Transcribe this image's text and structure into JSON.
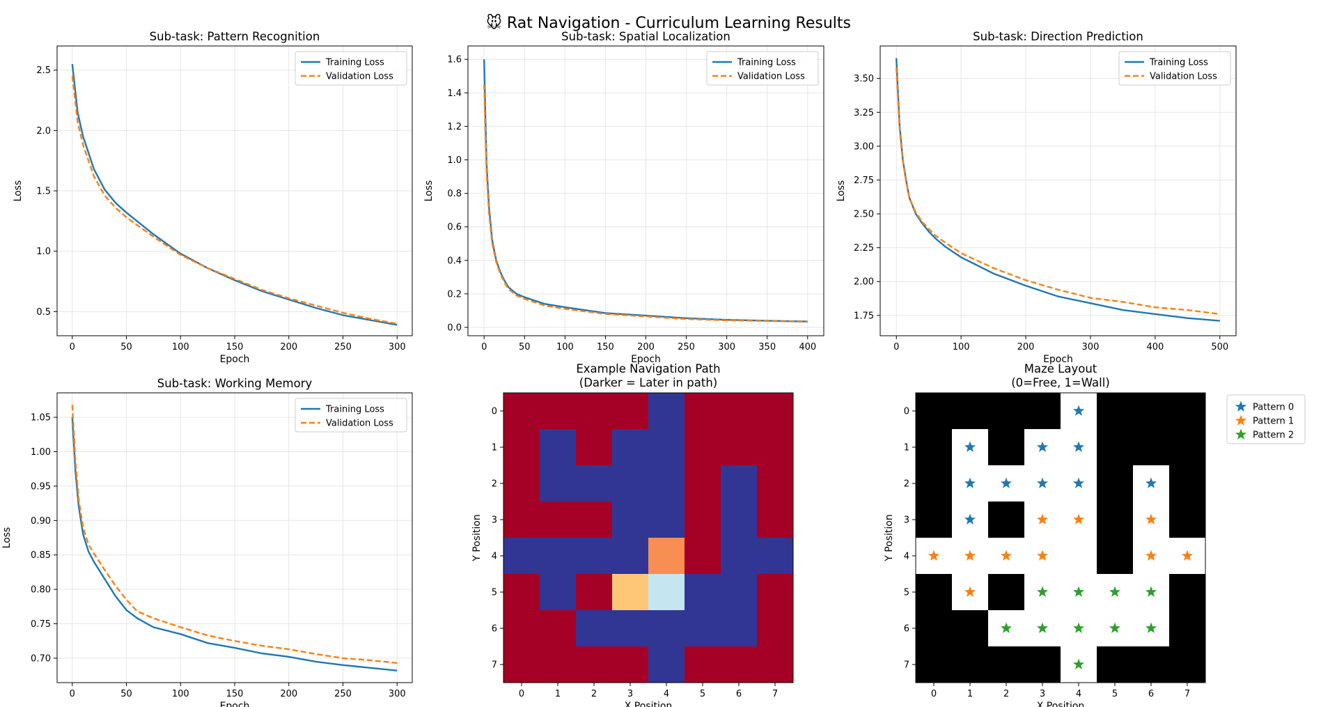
{
  "figure": {
    "title": "🐭 Rat Navigation - Curriculum Learning Results"
  },
  "colors": {
    "training": "#1f77b4",
    "validation": "#ff7f0e",
    "pattern0": "#1f77b4",
    "pattern1": "#ff7f0e",
    "pattern2": "#2ca02c",
    "grid": "#e6e6e6",
    "wall": "#000000",
    "free": "#ffffff",
    "heat_low": "#a50026",
    "heat_high": "#313695"
  },
  "chart_data": [
    {
      "type": "line",
      "title": "Sub-task: Pattern Recognition",
      "xlabel": "Epoch",
      "ylabel": "Loss",
      "xlim": [
        -14,
        314
      ],
      "ylim": [
        0.3,
        2.7
      ],
      "xticks": [
        "0",
        "50",
        "100",
        "150",
        "200",
        "250",
        "300"
      ],
      "yticks": [
        "0.5",
        "1.0",
        "1.5",
        "2.0",
        "2.5"
      ],
      "legend": "top-right",
      "grid": true,
      "series": [
        {
          "name": "Training Loss",
          "style": "solid",
          "x": [
            0,
            5,
            10,
            20,
            30,
            40,
            50,
            75,
            100,
            125,
            150,
            175,
            200,
            225,
            250,
            275,
            300
          ],
          "values": [
            2.55,
            2.15,
            1.95,
            1.68,
            1.51,
            1.4,
            1.32,
            1.14,
            0.98,
            0.86,
            0.76,
            0.67,
            0.6,
            0.53,
            0.47,
            0.43,
            0.39
          ]
        },
        {
          "name": "Validation Loss",
          "style": "dashed",
          "x": [
            0,
            5,
            10,
            20,
            30,
            40,
            50,
            75,
            100,
            125,
            150,
            175,
            200,
            225,
            250,
            275,
            300
          ],
          "values": [
            2.45,
            2.07,
            1.88,
            1.62,
            1.46,
            1.36,
            1.28,
            1.12,
            0.97,
            0.86,
            0.77,
            0.68,
            0.61,
            0.55,
            0.49,
            0.44,
            0.4
          ]
        }
      ]
    },
    {
      "type": "line",
      "title": "Sub-task: Spatial Localization",
      "xlabel": "Epoch",
      "ylabel": "Loss",
      "xlim": [
        -20,
        420
      ],
      "ylim": [
        -0.05,
        1.68
      ],
      "xticks": [
        "0",
        "50",
        "100",
        "150",
        "200",
        "250",
        "300",
        "350",
        "400"
      ],
      "yticks": [
        "0.0",
        "0.2",
        "0.4",
        "0.6",
        "0.8",
        "1.0",
        "1.2",
        "1.4",
        "1.6"
      ],
      "legend": "top-right",
      "grid": true,
      "series": [
        {
          "name": "Training Loss",
          "style": "solid",
          "x": [
            0,
            3,
            6,
            10,
            15,
            20,
            25,
            30,
            40,
            50,
            75,
            100,
            150,
            200,
            250,
            300,
            350,
            400
          ],
          "values": [
            1.6,
            0.98,
            0.72,
            0.52,
            0.4,
            0.33,
            0.28,
            0.24,
            0.2,
            0.18,
            0.14,
            0.12,
            0.085,
            0.07,
            0.055,
            0.045,
            0.04,
            0.035
          ]
        },
        {
          "name": "Validation Loss",
          "style": "dashed",
          "x": [
            0,
            3,
            6,
            10,
            15,
            20,
            25,
            30,
            40,
            50,
            75,
            100,
            150,
            200,
            250,
            300,
            350,
            400
          ],
          "values": [
            1.45,
            0.93,
            0.68,
            0.5,
            0.39,
            0.32,
            0.27,
            0.23,
            0.19,
            0.17,
            0.13,
            0.11,
            0.08,
            0.065,
            0.05,
            0.042,
            0.038,
            0.033
          ]
        }
      ]
    },
    {
      "type": "line",
      "title": "Sub-task: Direction Prediction",
      "xlabel": "Epoch",
      "ylabel": "Loss",
      "xlim": [
        -25,
        525
      ],
      "ylim": [
        1.6,
        3.74
      ],
      "xticks": [
        "0",
        "100",
        "200",
        "300",
        "400",
        "500"
      ],
      "yticks": [
        "1.75",
        "2.00",
        "2.25",
        "2.50",
        "2.75",
        "3.00",
        "3.25",
        "3.50"
      ],
      "legend": "top-right",
      "grid": true,
      "series": [
        {
          "name": "Training Loss",
          "style": "solid",
          "x": [
            0,
            5,
            10,
            15,
            20,
            30,
            40,
            50,
            60,
            75,
            100,
            150,
            200,
            250,
            300,
            350,
            400,
            450,
            500
          ],
          "values": [
            3.65,
            3.15,
            2.9,
            2.75,
            2.62,
            2.5,
            2.43,
            2.37,
            2.32,
            2.26,
            2.18,
            2.06,
            1.97,
            1.89,
            1.84,
            1.79,
            1.76,
            1.73,
            1.71
          ]
        },
        {
          "name": "Validation Loss",
          "style": "dashed",
          "x": [
            0,
            5,
            10,
            15,
            20,
            30,
            40,
            50,
            60,
            75,
            100,
            150,
            200,
            250,
            300,
            350,
            400,
            450,
            500
          ],
          "values": [
            3.58,
            3.12,
            2.89,
            2.74,
            2.62,
            2.51,
            2.44,
            2.39,
            2.34,
            2.29,
            2.21,
            2.1,
            2.01,
            1.94,
            1.88,
            1.85,
            1.81,
            1.79,
            1.76
          ]
        }
      ]
    },
    {
      "type": "line",
      "title": "Sub-task: Working Memory",
      "xlabel": "Epoch",
      "ylabel": "Loss",
      "xlim": [
        -14,
        314
      ],
      "ylim": [
        0.6645,
        1.0855
      ],
      "xticks": [
        "0",
        "50",
        "100",
        "150",
        "200",
        "250",
        "300"
      ],
      "yticks": [
        "0.70",
        "0.75",
        "0.80",
        "0.85",
        "0.90",
        "0.95",
        "1.00",
        "1.05"
      ],
      "legend": "top-right",
      "grid": true,
      "series": [
        {
          "name": "Training Loss",
          "style": "solid",
          "x": [
            0,
            3,
            6,
            10,
            15,
            20,
            30,
            40,
            50,
            60,
            75,
            100,
            125,
            150,
            175,
            200,
            225,
            250,
            275,
            300
          ],
          "values": [
            1.05,
            0.97,
            0.92,
            0.88,
            0.855,
            0.84,
            0.815,
            0.79,
            0.77,
            0.758,
            0.745,
            0.735,
            0.722,
            0.715,
            0.707,
            0.702,
            0.695,
            0.69,
            0.686,
            0.682
          ]
        },
        {
          "name": "Validation Loss",
          "style": "dashed",
          "x": [
            0,
            3,
            6,
            10,
            15,
            20,
            30,
            40,
            50,
            60,
            75,
            100,
            125,
            150,
            175,
            200,
            225,
            250,
            275,
            300
          ],
          "values": [
            1.068,
            0.985,
            0.93,
            0.89,
            0.865,
            0.852,
            0.828,
            0.805,
            0.785,
            0.768,
            0.758,
            0.745,
            0.733,
            0.725,
            0.718,
            0.713,
            0.706,
            0.7,
            0.697,
            0.693
          ]
        }
      ]
    },
    {
      "type": "heatmap",
      "title": "Example Navigation Path\n(Darker = Later in path)",
      "xlabel": "X Position",
      "ylabel": "Y Position",
      "xticks": [
        "0",
        "1",
        "2",
        "3",
        "4",
        "5",
        "6",
        "7"
      ],
      "yticks": [
        "0",
        "1",
        "2",
        "3",
        "4",
        "5",
        "6",
        "7"
      ],
      "values": [
        [
          0,
          0,
          0,
          0,
          1,
          0,
          0,
          0
        ],
        [
          0,
          1,
          0,
          1,
          1,
          0,
          0,
          0
        ],
        [
          0,
          1,
          1,
          1,
          1,
          0,
          1,
          0
        ],
        [
          0,
          0,
          0,
          1,
          1,
          0,
          1,
          0
        ],
        [
          1,
          1,
          1,
          1,
          0.25,
          0,
          1,
          1
        ],
        [
          0,
          1,
          0,
          0.35,
          0.65,
          1,
          1,
          0
        ],
        [
          0,
          0,
          1,
          1,
          1,
          1,
          1,
          0
        ],
        [
          0,
          0,
          0,
          0,
          1,
          0,
          0,
          0
        ]
      ]
    },
    {
      "type": "heatmap",
      "title": "Maze Layout\n(0=Free, 1=Wall)",
      "xlabel": "X Position",
      "ylabel": "Y Position",
      "xticks": [
        "0",
        "1",
        "2",
        "3",
        "4",
        "5",
        "6",
        "7"
      ],
      "yticks": [
        "0",
        "1",
        "2",
        "3",
        "4",
        "5",
        "6",
        "7"
      ],
      "legend": "outside-right",
      "walls": [
        [
          1,
          1,
          1,
          1,
          0,
          1,
          1,
          1
        ],
        [
          1,
          0,
          1,
          0,
          0,
          1,
          1,
          1
        ],
        [
          1,
          0,
          0,
          0,
          0,
          1,
          0,
          1
        ],
        [
          1,
          0,
          1,
          0,
          0,
          1,
          0,
          1
        ],
        [
          0,
          0,
          0,
          0,
          0,
          1,
          0,
          0
        ],
        [
          1,
          0,
          1,
          0,
          0,
          0,
          0,
          1
        ],
        [
          1,
          1,
          0,
          0,
          0,
          0,
          0,
          1
        ],
        [
          1,
          1,
          1,
          1,
          0,
          1,
          1,
          1
        ]
      ],
      "series": [
        {
          "name": "Pattern 0",
          "points": [
            [
              4,
              0
            ],
            [
              1,
              1
            ],
            [
              3,
              1
            ],
            [
              4,
              1
            ],
            [
              1,
              2
            ],
            [
              2,
              2
            ],
            [
              3,
              2
            ],
            [
              4,
              2
            ],
            [
              6,
              2
            ],
            [
              1,
              3
            ]
          ]
        },
        {
          "name": "Pattern 1",
          "points": [
            [
              3,
              3
            ],
            [
              4,
              3
            ],
            [
              6,
              3
            ],
            [
              0,
              4
            ],
            [
              1,
              4
            ],
            [
              2,
              4
            ],
            [
              3,
              4
            ],
            [
              6,
              4
            ],
            [
              7,
              4
            ],
            [
              1,
              5
            ]
          ]
        },
        {
          "name": "Pattern 2",
          "points": [
            [
              3,
              5
            ],
            [
              4,
              5
            ],
            [
              5,
              5
            ],
            [
              6,
              5
            ],
            [
              2,
              6
            ],
            [
              3,
              6
            ],
            [
              4,
              6
            ],
            [
              5,
              6
            ],
            [
              6,
              6
            ],
            [
              4,
              7
            ]
          ]
        }
      ]
    }
  ]
}
